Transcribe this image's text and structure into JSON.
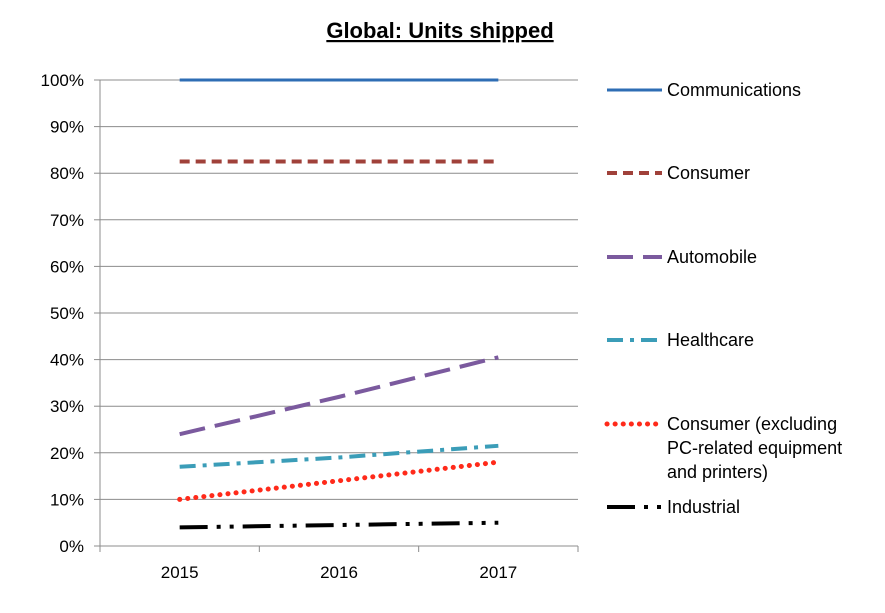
{
  "chart_data": {
    "type": "line",
    "title": "Global: Units shipped",
    "xlabel": "",
    "ylabel": "",
    "categories": [
      "2015",
      "2016",
      "2017"
    ],
    "ylim": [
      0,
      100
    ],
    "yticks": [
      "0%",
      "10%",
      "20%",
      "30%",
      "40%",
      "50%",
      "60%",
      "70%",
      "80%",
      "90%",
      "100%"
    ],
    "grid": true,
    "legend_position": "right",
    "series": [
      {
        "name": "Communications",
        "values": [
          100,
          100,
          100
        ],
        "color": "#2E6DB4",
        "style": "solid"
      },
      {
        "name": "Consumer",
        "values": [
          82.5,
          82.5,
          82.5
        ],
        "color": "#A0413A",
        "style": "dashed"
      },
      {
        "name": "Automobile",
        "values": [
          24,
          32,
          40.5
        ],
        "color": "#7B5A9E",
        "style": "long-dash"
      },
      {
        "name": "Healthcare",
        "values": [
          17,
          19,
          21.5
        ],
        "color": "#3B9DB8",
        "style": "dash-dot"
      },
      {
        "name": "Consumer (excluding PC-related equipment and printers)",
        "name_lines": [
          "Consumer (excluding",
          "PC-related equipment",
          "and printers)"
        ],
        "values": [
          10,
          14,
          18
        ],
        "color": "#FF2A1A",
        "style": "dotted"
      },
      {
        "name": "Industrial",
        "values": [
          4,
          4.5,
          5
        ],
        "color": "#000000",
        "style": "long-dash-dot-dot"
      }
    ]
  }
}
